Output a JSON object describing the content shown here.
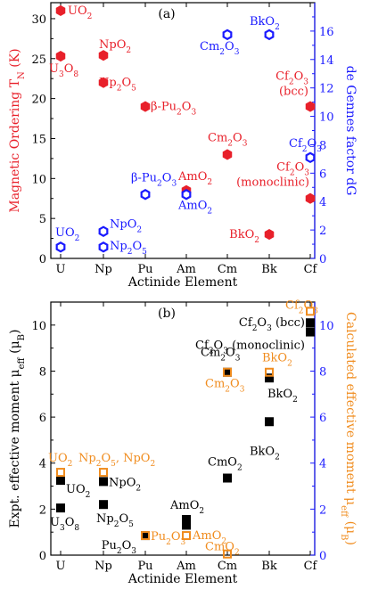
{
  "colors": {
    "red": "#e8202a",
    "blue": "#1a1aff",
    "orange": "#f08c1e",
    "black": "#000000"
  },
  "chart_data": [
    {
      "type": "scatter",
      "panel_label": "(a)",
      "xlabel": "Actinide Element",
      "categories": [
        "U",
        "Np",
        "Pu",
        "Am",
        "Cm",
        "Bk",
        "Cf"
      ],
      "ylabel_left": "Magnetic Ordering T_N (K)",
      "ylabel_right": "de Gennes factor dG",
      "ylim_left": [
        0,
        32
      ],
      "ylim_right": [
        0,
        18
      ],
      "yticks_left": [
        0,
        5,
        10,
        15,
        20,
        25,
        30
      ],
      "yticks_right": [
        0,
        2,
        4,
        6,
        8,
        10,
        12,
        14,
        16
      ],
      "grid": false,
      "series": [
        {
          "marker": "filled-hexagon",
          "color": "red",
          "axis": "left",
          "points": [
            {
              "x": "U",
              "y": 31,
              "label": "UO2"
            },
            {
              "x": "U",
              "y": 25.3,
              "label": "U3O8"
            },
            {
              "x": "Np",
              "y": 25.4,
              "label": "NpO2"
            },
            {
              "x": "Np",
              "y": 22,
              "label": "Np2O5"
            },
            {
              "x": "Pu",
              "y": 19,
              "label": "β-Pu2O3"
            },
            {
              "x": "Am",
              "y": 8.5,
              "label": "AmO2"
            },
            {
              "x": "Cm",
              "y": 13,
              "label": "Cm2O3"
            },
            {
              "x": "Bk",
              "y": 3,
              "label": "BkO2"
            },
            {
              "x": "Cf",
              "y": 19,
              "label": "Cf2O3 (bcc)"
            },
            {
              "x": "Cf",
              "y": 7.5,
              "label": "Cf2O3 (monoclinic)"
            }
          ]
        },
        {
          "marker": "open-hexagon",
          "color": "blue",
          "axis": "right",
          "points": [
            {
              "x": "U",
              "y": 0.8,
              "label": "UO2"
            },
            {
              "x": "Np",
              "y": 1.9,
              "label": "NpO2"
            },
            {
              "x": "Np",
              "y": 0.8,
              "label": "Np2O5"
            },
            {
              "x": "Pu",
              "y": 4.5,
              "label": "β-Pu2O3"
            },
            {
              "x": "Am",
              "y": 4.5,
              "label": "AmO2"
            },
            {
              "x": "Cm",
              "y": 15.75,
              "label": "Cm2O3"
            },
            {
              "x": "Bk",
              "y": 15.75,
              "label": "BkO2"
            },
            {
              "x": "Cf",
              "y": 7.1,
              "label": "Cf2O3"
            }
          ]
        }
      ]
    },
    {
      "type": "scatter",
      "panel_label": "(b)",
      "xlabel": "Actinide Element",
      "categories": [
        "U",
        "Np",
        "Pu",
        "Am",
        "Cm",
        "Bk",
        "Cf"
      ],
      "ylabel_left": "Expt. effective moment μ_eff (μ_B)",
      "ylabel_right": "Calculated effective moment μ_eff (μ_B)",
      "ylim_left": [
        0,
        11
      ],
      "ylim_right": [
        0,
        11
      ],
      "yticks_left": [
        0,
        2,
        4,
        6,
        8,
        10
      ],
      "yticks_right": [
        0,
        2,
        4,
        6,
        8,
        10
      ],
      "grid": false,
      "series": [
        {
          "marker": "filled-square",
          "color": "black",
          "axis": "left",
          "points": [
            {
              "x": "U",
              "y": 3.25,
              "label": "UO2"
            },
            {
              "x": "U",
              "y": 2.05,
              "label": "U3O8"
            },
            {
              "x": "Np",
              "y": 3.2,
              "label": "NpO2"
            },
            {
              "x": "Np",
              "y": 2.2,
              "label": "Np2O5"
            },
            {
              "x": "Pu",
              "y": 0.85,
              "label": "Pu2O3"
            },
            {
              "x": "Am",
              "y": 1.55,
              "label": "AmO2"
            },
            {
              "x": "Am",
              "y": 1.3,
              "label": ""
            },
            {
              "x": "Cm",
              "y": 7.95,
              "label": "Cm2O3"
            },
            {
              "x": "Cm",
              "y": 3.35,
              "label": "CmO2"
            },
            {
              "x": "Bk",
              "y": 7.7,
              "label": "BkO2"
            },
            {
              "x": "Bk",
              "y": 5.8,
              "label": "BkO2"
            },
            {
              "x": "Cf",
              "y": 10.1,
              "label": "Cf2O3 (bcc)"
            },
            {
              "x": "Cf",
              "y": 9.7,
              "label": "Cf2O3 (monoclinic)"
            }
          ]
        },
        {
          "marker": "open-square",
          "color": "orange",
          "axis": "right",
          "points": [
            {
              "x": "U",
              "y": 3.6,
              "label": "UO2"
            },
            {
              "x": "Np",
              "y": 3.6,
              "label": "Np2O5, NpO2"
            },
            {
              "x": "Pu",
              "y": 0.85,
              "label": "Pu2O3"
            },
            {
              "x": "Am",
              "y": 0.85,
              "label": "AmO2"
            },
            {
              "x": "Cm",
              "y": 7.95,
              "label": "Cm2O3"
            },
            {
              "x": "Cm",
              "y": 0.05,
              "label": "CmO2"
            },
            {
              "x": "Bk",
              "y": 7.95,
              "label": "BkO2"
            },
            {
              "x": "Cf",
              "y": 10.6,
              "label": "Cf2O3"
            }
          ]
        }
      ]
    }
  ]
}
